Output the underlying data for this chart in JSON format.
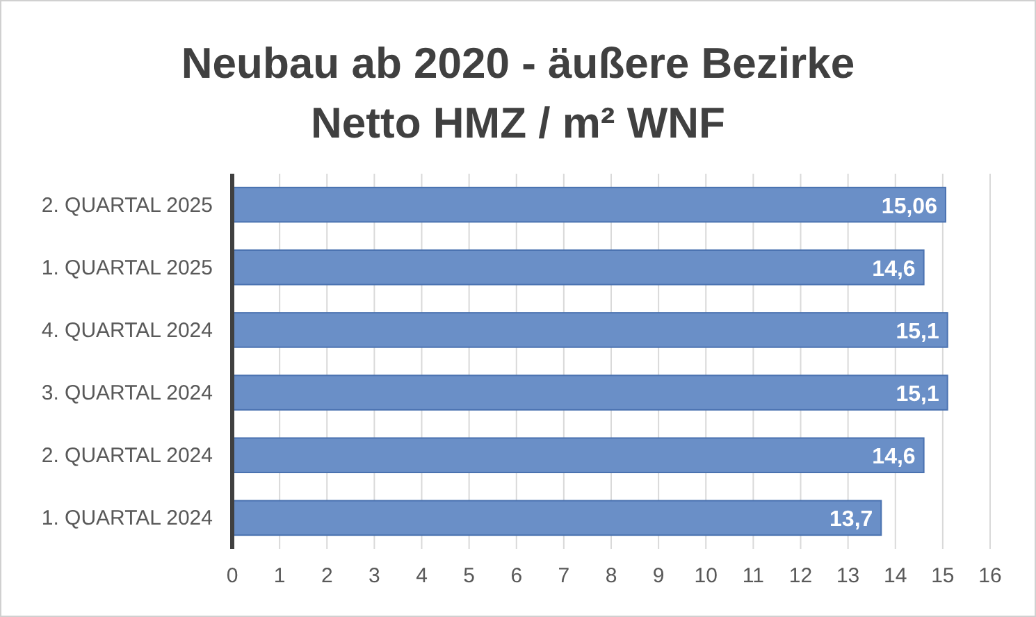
{
  "chart_data": {
    "type": "bar",
    "orientation": "horizontal",
    "title": "Neubau ab 2020 - äußere Bezirke",
    "subtitle": "Netto HMZ / m² WNF",
    "categories": [
      "2. QUARTAL 2025",
      "1. QUARTAL 2025",
      "4. QUARTAL 2024",
      "3. QUARTAL 2024",
      "2. QUARTAL 2024",
      "1. QUARTAL 2024"
    ],
    "values": [
      15.06,
      14.6,
      15.1,
      15.1,
      14.6,
      13.7
    ],
    "value_labels": [
      "15,06",
      "14,6",
      "15,1",
      "15,1",
      "14,6",
      "13,7"
    ],
    "color": "#6a8fc7",
    "xlim": [
      0,
      16
    ],
    "xticks": [
      0,
      1,
      2,
      3,
      4,
      5,
      6,
      7,
      8,
      9,
      10,
      11,
      12,
      13,
      14,
      15,
      16
    ],
    "grid": "x"
  }
}
